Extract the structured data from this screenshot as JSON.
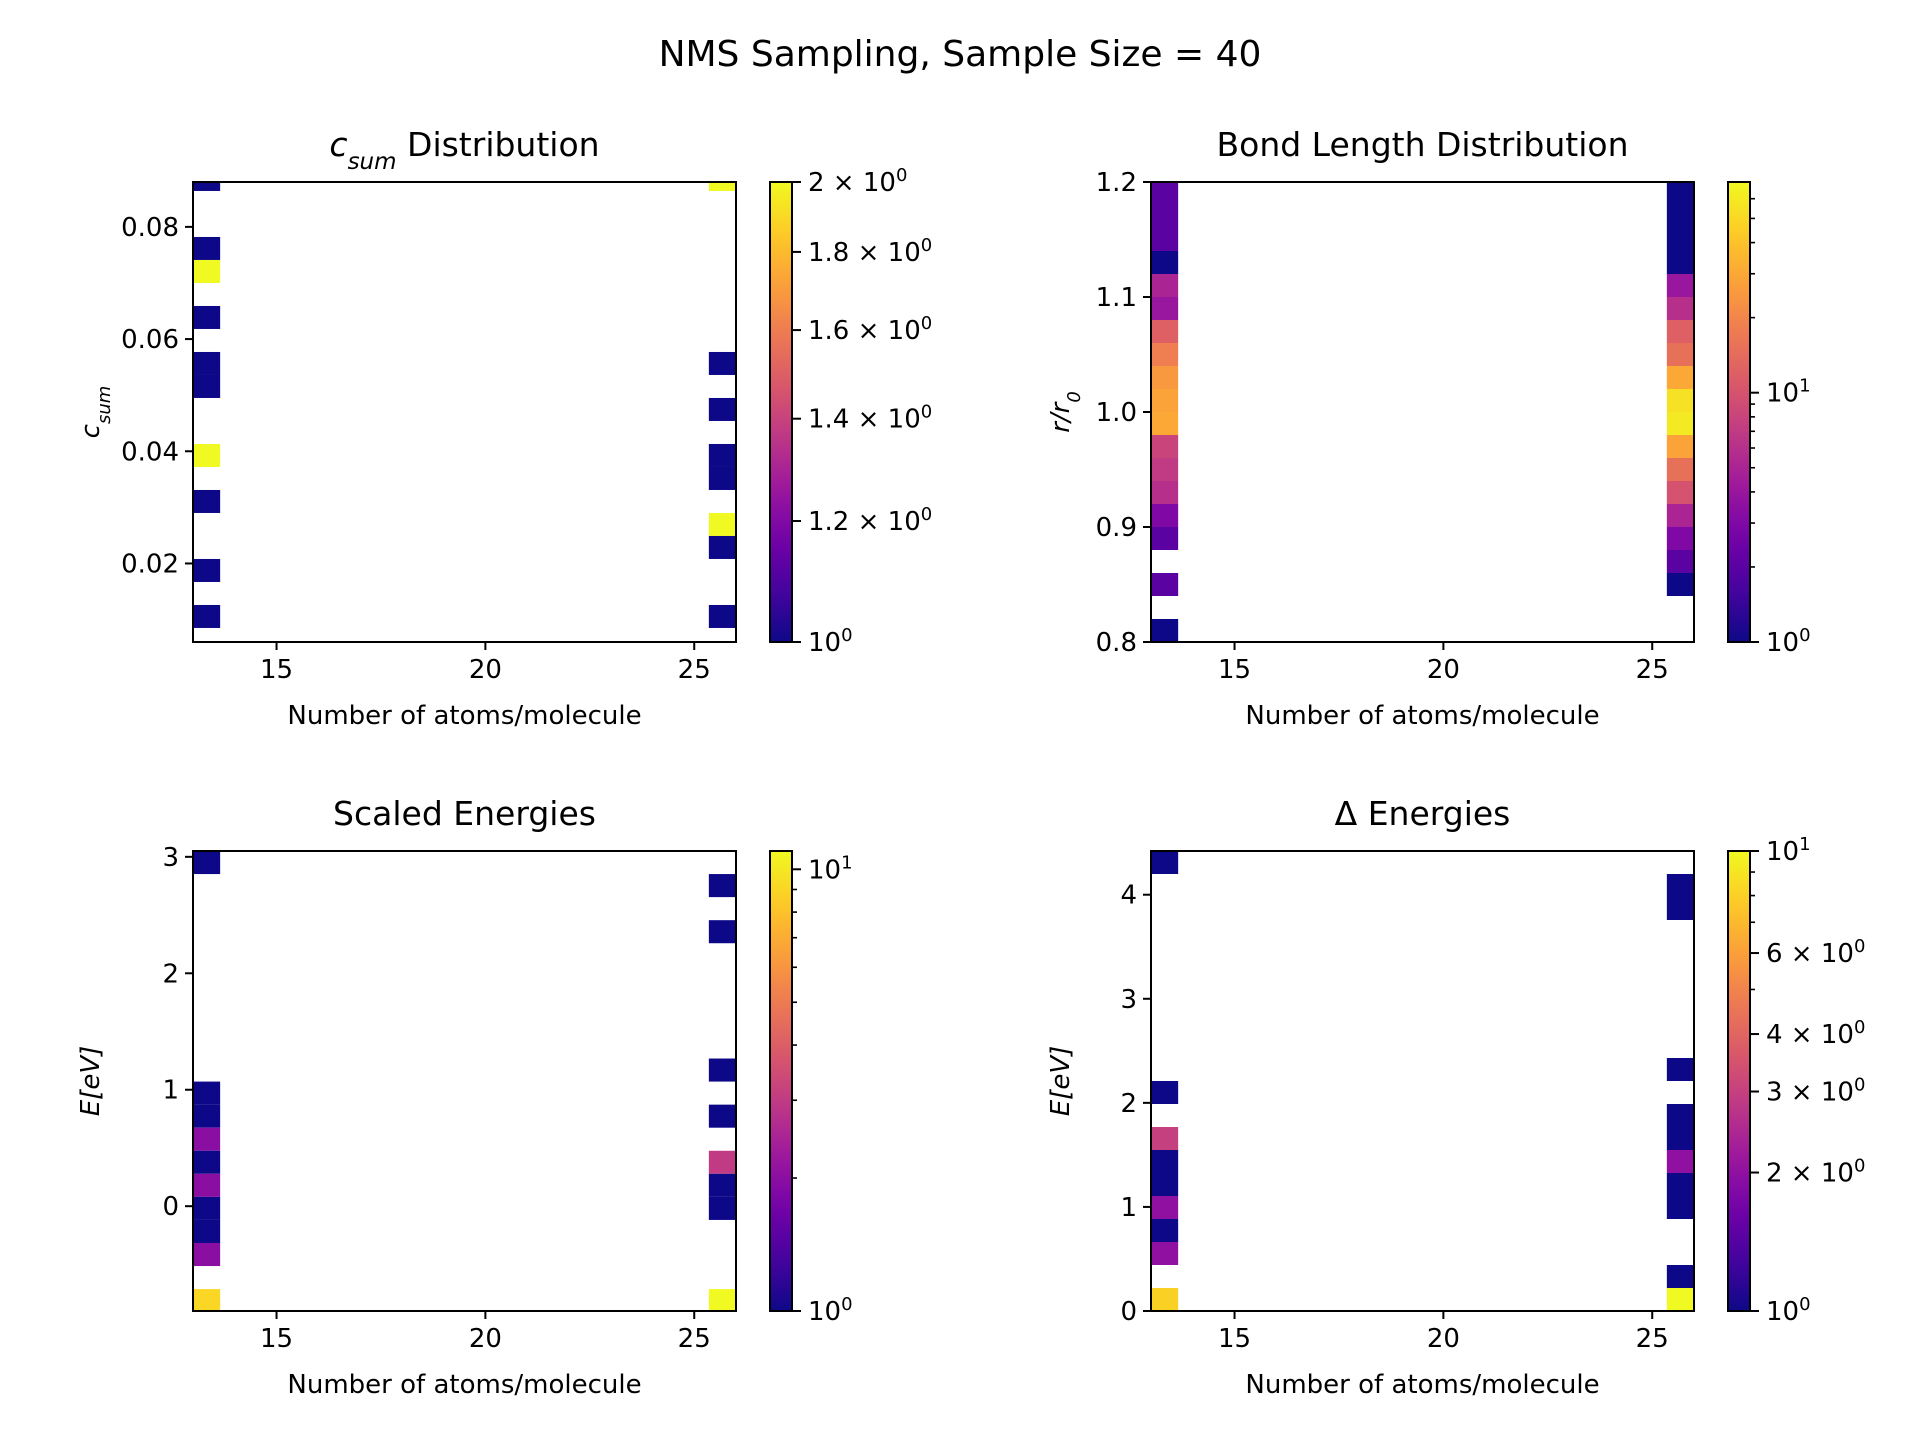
{
  "figure": {
    "title": "NMS Sampling, Sample Size = 40",
    "colormap": "plasma",
    "colormap_stops": [
      "#0d0887",
      "#46039f",
      "#7201a8",
      "#9c179e",
      "#bd3786",
      "#d8576b",
      "#ed7953",
      "#fb9f3a",
      "#fdca26",
      "#f0f921"
    ]
  },
  "chart_data": [
    {
      "type": "heatmap",
      "title_main": "c",
      "title_sub": "sum",
      "title_rest": " Distribution",
      "xlabel": "Number of atoms/molecule",
      "ylabel_main": "c",
      "ylabel_sub": "sum",
      "xlim": [
        13,
        26
      ],
      "ylim": [
        0.006,
        0.088
      ],
      "xticks": [
        15,
        20,
        25
      ],
      "xtick_labels": [
        "15",
        "20",
        "25"
      ],
      "yticks": [
        0.02,
        0.04,
        0.06,
        0.08
      ],
      "ytick_labels": [
        "0.02",
        "0.04",
        "0.06",
        "0.08"
      ],
      "cbar_log": true,
      "cbar_min": 1,
      "cbar_max": 2,
      "cbar_major": [
        {
          "v": 1,
          "m": "10",
          "e": "0"
        },
        {
          "v": 1.2,
          "m": "1.2 × 10",
          "e": "0"
        },
        {
          "v": 1.4,
          "m": "1.4 × 10",
          "e": "0"
        },
        {
          "v": 1.6,
          "m": "1.6 × 10",
          "e": "0"
        },
        {
          "v": 1.8,
          "m": "1.8 × 10",
          "e": "0"
        },
        {
          "v": 2,
          "m": "2 × 10",
          "e": "0"
        }
      ],
      "cbar_minor": [],
      "bin_dx": 0.65,
      "bin_dy": 0.0041,
      "cells": [
        {
          "x": 13.0,
          "y": 0.0864,
          "c": 1
        },
        {
          "x": 13.0,
          "y": 0.0741,
          "c": 1
        },
        {
          "x": 13.0,
          "y": 0.07,
          "c": 2
        },
        {
          "x": 13.0,
          "y": 0.0618,
          "c": 1
        },
        {
          "x": 13.0,
          "y": 0.0536,
          "c": 1
        },
        {
          "x": 13.0,
          "y": 0.0495,
          "c": 1
        },
        {
          "x": 13.0,
          "y": 0.0372,
          "c": 2
        },
        {
          "x": 13.0,
          "y": 0.029,
          "c": 1
        },
        {
          "x": 13.0,
          "y": 0.0167,
          "c": 1
        },
        {
          "x": 13.0,
          "y": 0.0085,
          "c": 1
        },
        {
          "x": 25.35,
          "y": 0.0864,
          "c": 2
        },
        {
          "x": 25.35,
          "y": 0.0536,
          "c": 1
        },
        {
          "x": 25.35,
          "y": 0.0454,
          "c": 1
        },
        {
          "x": 25.35,
          "y": 0.0372,
          "c": 1
        },
        {
          "x": 25.35,
          "y": 0.0331,
          "c": 1
        },
        {
          "x": 25.35,
          "y": 0.0249,
          "c": 2
        },
        {
          "x": 25.35,
          "y": 0.0208,
          "c": 1
        },
        {
          "x": 25.35,
          "y": 0.0085,
          "c": 1
        }
      ]
    },
    {
      "type": "heatmap",
      "title_main": "Bond Length Distribution",
      "title_sub": "",
      "title_rest": "",
      "xlabel": "Number of atoms/molecule",
      "ylabel_main": "r/r",
      "ylabel_sub": "0",
      "xlim": [
        13,
        26
      ],
      "ylim": [
        0.8,
        1.2
      ],
      "xticks": [
        15,
        20,
        25
      ],
      "xtick_labels": [
        "15",
        "20",
        "25"
      ],
      "yticks": [
        0.8,
        0.9,
        1.0,
        1.1,
        1.2
      ],
      "ytick_labels": [
        "0.8",
        "0.9",
        "1.0",
        "1.1",
        "1.2"
      ],
      "cbar_log": true,
      "cbar_min": 1,
      "cbar_max": 70,
      "cbar_major": [
        {
          "v": 1,
          "m": "10",
          "e": "0"
        },
        {
          "v": 10,
          "m": "10",
          "e": "1"
        }
      ],
      "cbar_minor": [
        2,
        3,
        4,
        5,
        6,
        7,
        8,
        9,
        20,
        30,
        40,
        50,
        60
      ],
      "bin_dx": 0.65,
      "bin_dy": 0.02,
      "cells": [
        {
          "x": 13.0,
          "y": 1.18,
          "c": 2
        },
        {
          "x": 13.0,
          "y": 1.16,
          "c": 2
        },
        {
          "x": 13.0,
          "y": 1.14,
          "c": 2
        },
        {
          "x": 13.0,
          "y": 1.12,
          "c": 1
        },
        {
          "x": 13.0,
          "y": 1.1,
          "c": 5
        },
        {
          "x": 13.0,
          "y": 1.08,
          "c": 4
        },
        {
          "x": 13.0,
          "y": 1.06,
          "c": 12
        },
        {
          "x": 13.0,
          "y": 1.04,
          "c": 18
        },
        {
          "x": 13.0,
          "y": 1.02,
          "c": 25
        },
        {
          "x": 13.0,
          "y": 1.0,
          "c": 28
        },
        {
          "x": 13.0,
          "y": 0.98,
          "c": 30
        },
        {
          "x": 13.0,
          "y": 0.96,
          "c": 8
        },
        {
          "x": 13.0,
          "y": 0.94,
          "c": 7
        },
        {
          "x": 13.0,
          "y": 0.92,
          "c": 6
        },
        {
          "x": 13.0,
          "y": 0.9,
          "c": 3
        },
        {
          "x": 13.0,
          "y": 0.88,
          "c": 2
        },
        {
          "x": 13.0,
          "y": 0.84,
          "c": 2
        },
        {
          "x": 13.0,
          "y": 0.8,
          "c": 1
        },
        {
          "x": 25.35,
          "y": 1.18,
          "c": 1
        },
        {
          "x": 25.35,
          "y": 1.16,
          "c": 1
        },
        {
          "x": 25.35,
          "y": 1.14,
          "c": 1
        },
        {
          "x": 25.35,
          "y": 1.12,
          "c": 1
        },
        {
          "x": 25.35,
          "y": 1.1,
          "c": 4
        },
        {
          "x": 25.35,
          "y": 1.08,
          "c": 6
        },
        {
          "x": 25.35,
          "y": 1.06,
          "c": 12
        },
        {
          "x": 25.35,
          "y": 1.04,
          "c": 15
        },
        {
          "x": 25.35,
          "y": 1.02,
          "c": 30
        },
        {
          "x": 25.35,
          "y": 1.0,
          "c": 55
        },
        {
          "x": 25.35,
          "y": 0.98,
          "c": 60
        },
        {
          "x": 25.35,
          "y": 0.96,
          "c": 28
        },
        {
          "x": 25.35,
          "y": 0.94,
          "c": 15
        },
        {
          "x": 25.35,
          "y": 0.92,
          "c": 10
        },
        {
          "x": 25.35,
          "y": 0.9,
          "c": 5
        },
        {
          "x": 25.35,
          "y": 0.88,
          "c": 3
        },
        {
          "x": 25.35,
          "y": 0.86,
          "c": 2
        },
        {
          "x": 25.35,
          "y": 0.84,
          "c": 1
        }
      ]
    },
    {
      "type": "heatmap",
      "title_main": "Scaled Energies",
      "title_sub": "",
      "title_rest": "",
      "xlabel": "Number of atoms/molecule",
      "ylabel_main": "E[eV]",
      "ylabel_sub": "",
      "xlim": [
        13,
        26
      ],
      "ylim": [
        -0.9,
        3.05
      ],
      "xticks": [
        15,
        20,
        25
      ],
      "xtick_labels": [
        "15",
        "20",
        "25"
      ],
      "yticks": [
        0,
        1,
        2,
        3
      ],
      "ytick_labels": [
        "0",
        "1",
        "2",
        "3"
      ],
      "cbar_log": true,
      "cbar_min": 1,
      "cbar_max": 11,
      "cbar_major": [
        {
          "v": 1,
          "m": "10",
          "e": "0"
        },
        {
          "v": 10,
          "m": "10",
          "e": "1"
        }
      ],
      "cbar_minor": [
        2,
        3,
        4,
        5,
        6,
        7,
        8,
        9
      ],
      "bin_dx": 0.65,
      "bin_dy": 0.198,
      "cells": [
        {
          "x": 13.0,
          "y": 2.852,
          "c": 1
        },
        {
          "x": 13.0,
          "y": 0.872,
          "c": 1
        },
        {
          "x": 13.0,
          "y": 0.674,
          "c": 1
        },
        {
          "x": 13.0,
          "y": 0.476,
          "c": 2
        },
        {
          "x": 13.0,
          "y": 0.278,
          "c": 1
        },
        {
          "x": 13.0,
          "y": 0.08,
          "c": 2
        },
        {
          "x": 13.0,
          "y": -0.118,
          "c": 1
        },
        {
          "x": 13.0,
          "y": -0.316,
          "c": 1
        },
        {
          "x": 13.0,
          "y": -0.514,
          "c": 2
        },
        {
          "x": 13.0,
          "y": -0.91,
          "c": 9
        },
        {
          "x": 25.35,
          "y": 2.654,
          "c": 1
        },
        {
          "x": 25.35,
          "y": 2.258,
          "c": 1
        },
        {
          "x": 25.35,
          "y": 1.07,
          "c": 1
        },
        {
          "x": 25.35,
          "y": 0.674,
          "c": 1
        },
        {
          "x": 25.35,
          "y": 0.278,
          "c": 3
        },
        {
          "x": 25.35,
          "y": 0.08,
          "c": 1
        },
        {
          "x": 25.35,
          "y": -0.118,
          "c": 1
        },
        {
          "x": 25.35,
          "y": -0.91,
          "c": 11
        }
      ]
    },
    {
      "type": "heatmap",
      "title_main": "Δ Energies",
      "title_sub": "",
      "title_rest": "",
      "xlabel": "Number of atoms/molecule",
      "ylabel_main": "E[eV]",
      "ylabel_sub": "",
      "xlim": [
        13,
        26
      ],
      "ylim": [
        0,
        4.42
      ],
      "xticks": [
        15,
        20,
        25
      ],
      "xtick_labels": [
        "15",
        "20",
        "25"
      ],
      "yticks": [
        0,
        1,
        2,
        3,
        4
      ],
      "ytick_labels": [
        "0",
        "1",
        "2",
        "3",
        "4"
      ],
      "cbar_log": true,
      "cbar_min": 1,
      "cbar_max": 10,
      "cbar_major": [
        {
          "v": 2,
          "m": "2 × 10",
          "e": "0"
        },
        {
          "v": 3,
          "m": "3 × 10",
          "e": "0"
        },
        {
          "v": 4,
          "m": "4 × 10",
          "e": "0"
        },
        {
          "v": 6,
          "m": "6 × 10",
          "e": "0"
        },
        {
          "v": 1,
          "m": "10",
          "e": "0"
        },
        {
          "v": 10,
          "m": "10",
          "e": "1"
        }
      ],
      "cbar_minor": [
        5,
        7,
        8,
        9
      ],
      "bin_dx": 0.65,
      "bin_dy": 0.221,
      "cells": [
        {
          "x": 13.0,
          "y": 4.199,
          "c": 1
        },
        {
          "x": 13.0,
          "y": 1.989,
          "c": 1
        },
        {
          "x": 13.0,
          "y": 1.547,
          "c": 3
        },
        {
          "x": 13.0,
          "y": 1.326,
          "c": 1
        },
        {
          "x": 13.0,
          "y": 1.105,
          "c": 1
        },
        {
          "x": 13.0,
          "y": 0.884,
          "c": 2
        },
        {
          "x": 13.0,
          "y": 0.663,
          "c": 1
        },
        {
          "x": 13.0,
          "y": 0.442,
          "c": 2
        },
        {
          "x": 13.0,
          "y": 0.0,
          "c": 8
        },
        {
          "x": 25.35,
          "y": 3.978,
          "c": 1
        },
        {
          "x": 25.35,
          "y": 3.757,
          "c": 1
        },
        {
          "x": 25.35,
          "y": 2.21,
          "c": 1
        },
        {
          "x": 25.35,
          "y": 1.768,
          "c": 1
        },
        {
          "x": 25.35,
          "y": 1.547,
          "c": 1
        },
        {
          "x": 25.35,
          "y": 1.326,
          "c": 2
        },
        {
          "x": 25.35,
          "y": 1.105,
          "c": 1
        },
        {
          "x": 25.35,
          "y": 0.884,
          "c": 1
        },
        {
          "x": 25.35,
          "y": 0.221,
          "c": 1
        },
        {
          "x": 25.35,
          "y": 0.0,
          "c": 10
        }
      ]
    }
  ]
}
